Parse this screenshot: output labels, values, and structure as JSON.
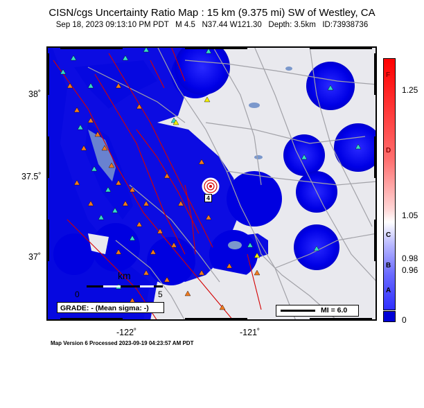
{
  "header": {
    "title": "CISN/cgs Uncertainty Ratio Map : 15  km (9.375 mi) SW of Westley, CA",
    "subtitle": "Sep 18, 2023 09:13:10 PM PDT   M 4.5   N37.44 W121.30   Depth: 3.5km   ID:73938736"
  },
  "axes": {
    "lat_labels": [
      "38˚",
      "37.5˚",
      "37˚"
    ],
    "lon_labels": [
      "-122˚",
      "-121˚"
    ]
  },
  "scalebar": {
    "label": "km",
    "start": "0",
    "end": "5"
  },
  "grade_box": "GRADE: - (Mean sigma: -)",
  "legend": {
    "mi_label": "MI = 6.0"
  },
  "colorbar": {
    "ticks": [
      "1.25",
      "1.05",
      "0.98",
      "0.96",
      "0"
    ],
    "letters": [
      "F",
      "D",
      "C",
      "B",
      "A"
    ]
  },
  "epicenter": {
    "label": "4"
  },
  "footer": "Map Version 6 Processed 2023-09-19 04:23:57 AM PDT",
  "colors": {
    "uncertainty_blue": "#0000e0",
    "bay_water": "#7a96cc",
    "land": "#e8e8ec",
    "fault": "#cc0000",
    "road": "#a0a0a0",
    "station_cyan": "#30d0c0",
    "station_orange": "#f07820",
    "station_yellow": "#f0f000"
  }
}
